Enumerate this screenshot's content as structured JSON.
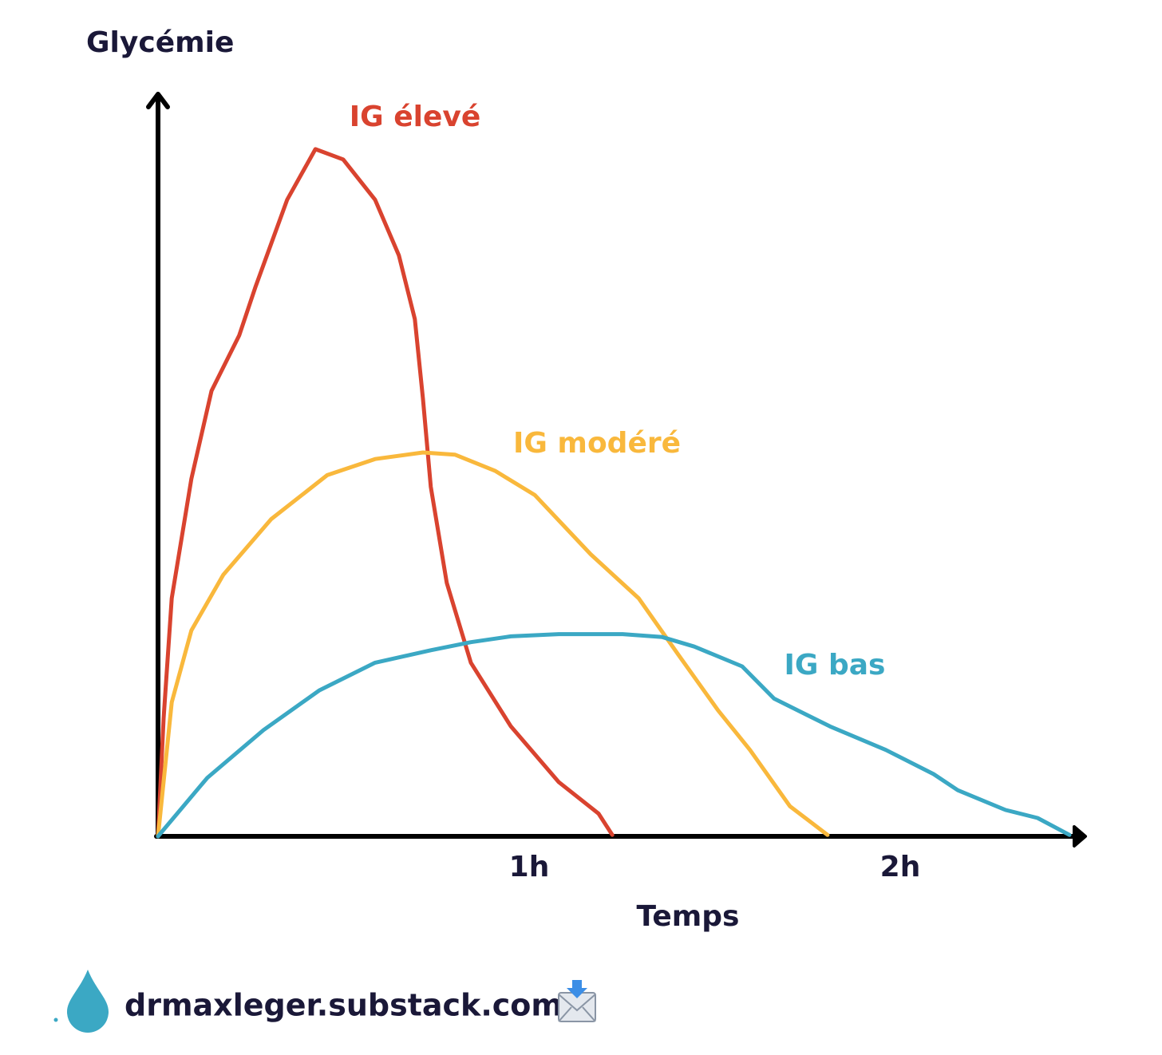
{
  "chart_data": {
    "type": "line",
    "y_label": "Glycémie",
    "x_label": "Temps",
    "xlim": [
      0,
      2.5
    ],
    "xticks": [
      {
        "value": 1,
        "label": "1h"
      },
      {
        "value": 2,
        "label": "2h"
      }
    ],
    "ylim": [
      0,
      100
    ],
    "series": [
      {
        "name": "IG élevé",
        "color": "#d9432f",
        "x": [
          0,
          0.015,
          0.037,
          0.09,
          0.144,
          0.219,
          0.262,
          0.348,
          0.424,
          0.499,
          0.585,
          0.649,
          0.692,
          0.714,
          0.735,
          0.778,
          0.843,
          0.951,
          1.08,
          1.187,
          1.224
        ],
        "values": [
          0,
          16.1,
          32.5,
          48.8,
          60.8,
          68.4,
          74.9,
          86.9,
          93.8,
          92.4,
          86.9,
          79.3,
          70.6,
          59.7,
          47.7,
          34.6,
          23.7,
          15.0,
          7.4,
          3.1,
          0.2
        ]
      },
      {
        "name": "IG modéré",
        "color": "#f9b83c",
        "x": [
          0,
          0.037,
          0.09,
          0.176,
          0.305,
          0.456,
          0.585,
          0.714,
          0.8,
          0.908,
          1.015,
          1.166,
          1.295,
          1.402,
          1.509,
          1.595,
          1.703,
          1.804
        ],
        "values": [
          0,
          18.3,
          28.1,
          35.7,
          43.3,
          49.3,
          51.5,
          52.4,
          52.1,
          49.9,
          46.6,
          38.5,
          32.5,
          24.8,
          17.2,
          11.8,
          4.1,
          0.2
        ]
      },
      {
        "name": "IG bas",
        "color": "#3ba8c4",
        "x": [
          0,
          0.133,
          0.284,
          0.434,
          0.585,
          0.735,
          0.843,
          0.951,
          1.08,
          1.252,
          1.359,
          1.445,
          1.574,
          1.66,
          1.811,
          1.961,
          2.09,
          2.155,
          2.284,
          2.37,
          2.456
        ],
        "values": [
          0,
          8.0,
          14.5,
          19.9,
          23.7,
          25.4,
          26.5,
          27.3,
          27.6,
          27.6,
          27.2,
          25.9,
          23.2,
          18.8,
          15.0,
          11.8,
          8.5,
          6.3,
          3.6,
          2.5,
          0.2
        ]
      }
    ],
    "footer": "drmaxleger.substack.com"
  }
}
